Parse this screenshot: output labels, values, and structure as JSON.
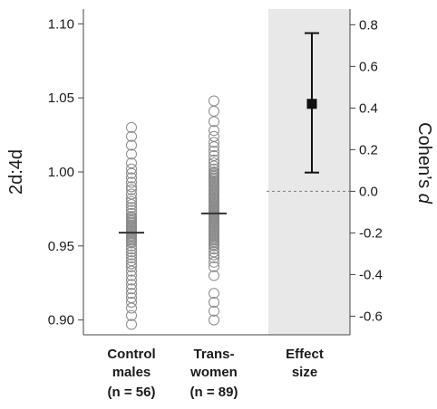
{
  "chart_data": {
    "type": "scatter",
    "ylabel_left": "2d:4d",
    "ylabel_right_prefix": "Cohen’s ",
    "ylabel_right_italic": "d",
    "left_axis": {
      "ylim": [
        0.89,
        1.11
      ],
      "ticks": [
        0.9,
        0.95,
        1.0,
        1.05,
        1.1
      ],
      "tick_labels": [
        "0.90",
        "0.95",
        "1.00",
        "1.05",
        "1.10"
      ]
    },
    "right_axis": {
      "ylim": [
        -0.6895,
        0.8755
      ],
      "ticks": [
        -0.6,
        -0.4,
        -0.2,
        0.0,
        0.2,
        0.4,
        0.6,
        0.8
      ],
      "tick_labels": [
        "-0.6",
        "-0.4",
        "-0.2",
        "0.0",
        "0.2",
        "0.4",
        "0.6",
        "0.8"
      ]
    },
    "groups": [
      {
        "label_lines": [
          "Control",
          "males"
        ],
        "n_label": "(n = 56)",
        "mean": 0.959,
        "values": [
          0.897,
          0.903,
          0.908,
          0.912,
          0.915,
          0.918,
          0.921,
          0.924,
          0.927,
          0.93,
          0.933,
          0.936,
          0.938,
          0.94,
          0.942,
          0.944,
          0.946,
          0.948,
          0.95,
          0.952,
          0.953,
          0.954,
          0.955,
          0.956,
          0.957,
          0.958,
          0.959,
          0.96,
          0.961,
          0.962,
          0.963,
          0.964,
          0.965,
          0.966,
          0.967,
          0.968,
          0.969,
          0.97,
          0.972,
          0.974,
          0.976,
          0.978,
          0.98,
          0.982,
          0.985,
          0.988,
          0.99,
          0.993,
          0.996,
          0.999,
          1.002,
          1.006,
          1.012,
          1.018,
          1.024,
          1.03
        ]
      },
      {
        "label_lines": [
          "Trans-",
          "women"
        ],
        "n_label": "(n = 89)",
        "mean": 0.972,
        "values": [
          0.9,
          0.906,
          0.912,
          0.918,
          0.93,
          0.936,
          0.939,
          0.942,
          0.944,
          0.946,
          0.948,
          0.95,
          0.951,
          0.952,
          0.953,
          0.954,
          0.955,
          0.956,
          0.957,
          0.958,
          0.959,
          0.96,
          0.961,
          0.962,
          0.962,
          0.963,
          0.964,
          0.965,
          0.965,
          0.966,
          0.967,
          0.967,
          0.968,
          0.969,
          0.969,
          0.97,
          0.97,
          0.971,
          0.971,
          0.972,
          0.972,
          0.973,
          0.973,
          0.974,
          0.974,
          0.975,
          0.975,
          0.976,
          0.977,
          0.977,
          0.978,
          0.978,
          0.979,
          0.98,
          0.98,
          0.981,
          0.982,
          0.982,
          0.983,
          0.984,
          0.985,
          0.986,
          0.987,
          0.988,
          0.989,
          0.99,
          0.991,
          0.992,
          0.993,
          0.994,
          0.995,
          0.996,
          0.997,
          0.998,
          0.999,
          1.0,
          1.002,
          1.004,
          1.006,
          1.008,
          1.011,
          1.014,
          1.017,
          1.02,
          1.024,
          1.028,
          1.034,
          1.041,
          1.048
        ]
      }
    ],
    "effect": {
      "label_lines": [
        "Effect",
        "size"
      ],
      "value": 0.42,
      "ci_low": 0.09,
      "ci_high": 0.76
    },
    "zero_reference_line": 0.0,
    "grid": false,
    "colors": {
      "marker_stroke": "#8a8a8a",
      "mean_line": "#333333",
      "effect_panel_bg": "#e8e8e8",
      "axis": "#444444",
      "effect_marker": "#111111",
      "zero_line": "#7a7a7a"
    }
  }
}
